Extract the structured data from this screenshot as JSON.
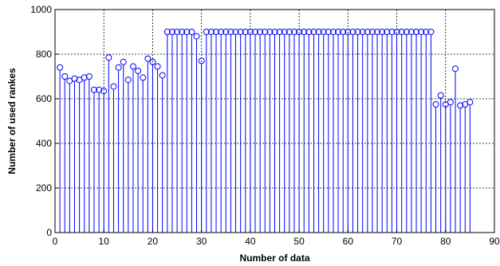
{
  "chart_data": {
    "type": "stem",
    "title": "",
    "xlabel": "Number of data",
    "ylabel": "Number of used rankes",
    "xlim": [
      0,
      90
    ],
    "ylim": [
      0,
      1000
    ],
    "xticks": [
      "0",
      "10",
      "20",
      "30",
      "40",
      "50",
      "60",
      "70",
      "80",
      "90"
    ],
    "yticks": [
      "0",
      "200",
      "400",
      "600",
      "800",
      "1000"
    ],
    "grid": true,
    "color": "#0000ff",
    "marker": "open-circle",
    "x": [
      1,
      2,
      3,
      4,
      5,
      6,
      7,
      8,
      9,
      10,
      11,
      12,
      13,
      14,
      15,
      16,
      17,
      18,
      19,
      20,
      21,
      22,
      23,
      24,
      25,
      26,
      27,
      28,
      29,
      30,
      31,
      32,
      33,
      34,
      35,
      36,
      37,
      38,
      39,
      40,
      41,
      42,
      43,
      44,
      45,
      46,
      47,
      48,
      49,
      50,
      51,
      52,
      53,
      54,
      55,
      56,
      57,
      58,
      59,
      60,
      61,
      62,
      63,
      64,
      65,
      66,
      67,
      68,
      69,
      70,
      71,
      72,
      73,
      74,
      75,
      76,
      77,
      78,
      79,
      80,
      81,
      82,
      83,
      84,
      85
    ],
    "y": [
      740,
      700,
      680,
      690,
      685,
      695,
      700,
      640,
      640,
      635,
      785,
      655,
      740,
      765,
      685,
      745,
      725,
      695,
      780,
      765,
      745,
      705,
      900,
      900,
      900,
      900,
      900,
      900,
      880,
      770,
      900,
      900,
      900,
      900,
      900,
      900,
      900,
      900,
      900,
      900,
      900,
      900,
      900,
      900,
      900,
      900,
      900,
      900,
      900,
      900,
      900,
      900,
      900,
      900,
      900,
      900,
      900,
      900,
      900,
      900,
      900,
      900,
      900,
      900,
      900,
      900,
      900,
      900,
      900,
      900,
      900,
      900,
      900,
      900,
      900,
      900,
      900,
      575,
      615,
      575,
      585,
      735,
      570,
      575,
      585
    ]
  }
}
